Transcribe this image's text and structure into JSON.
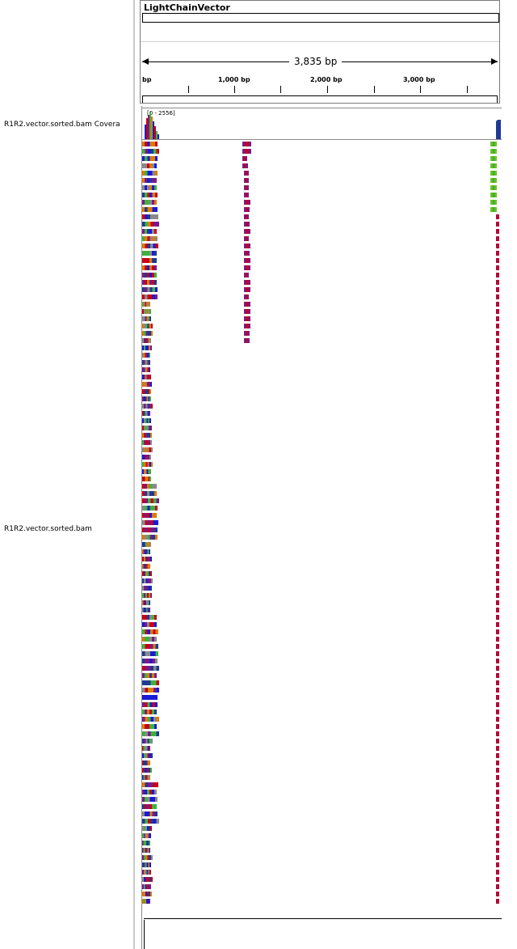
{
  "tracks": {
    "coverage_name": "R1R2.vector.sorted.bam Covera",
    "alignment_name": "R1R2.vector.sorted.bam"
  },
  "ruler": {
    "chromosome": "LightChainVector",
    "span_label": "3,835 bp",
    "tick_labels": [
      "bp",
      "1,000 bp",
      "2,000 bp",
      "3,000 bp"
    ]
  },
  "coverage": {
    "range_label": "[0 - 2556]"
  },
  "colors": {
    "red": "#c80018",
    "blue": "#1a1ad6",
    "purple": "#7a1a8a",
    "orange": "#e07a00",
    "green": "#3cb33c",
    "lime": "#74c21c",
    "navy": "#1f3a93",
    "grey": "#8a8a8a"
  }
}
